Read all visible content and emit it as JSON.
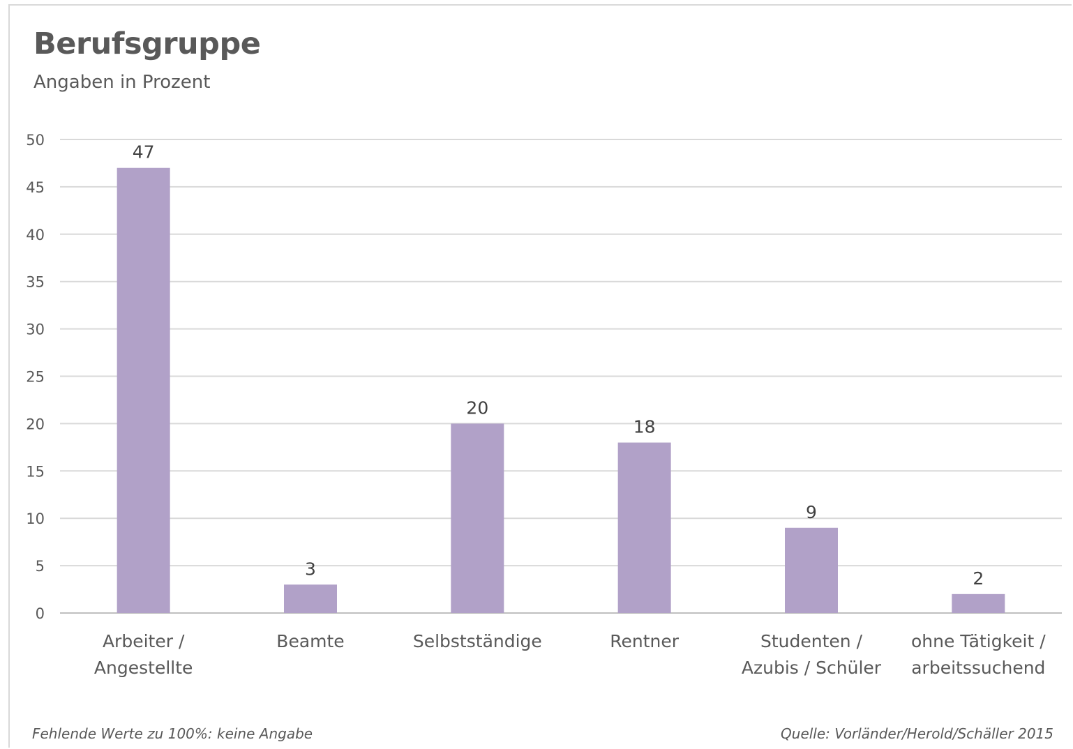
{
  "chart_data": {
    "type": "bar",
    "title": "Berufsgruppe",
    "subtitle": "Angaben in Prozent",
    "categories": [
      [
        "Arbeiter /",
        "Angestellte"
      ],
      [
        "Beamte"
      ],
      [
        "Selbstständige"
      ],
      [
        "Rentner"
      ],
      [
        "Studenten /",
        "Azubis / Schüler"
      ],
      [
        "ohne Tätigkeit /",
        "arbeitssuchend"
      ]
    ],
    "values": [
      47,
      3,
      20,
      18,
      9,
      2
    ],
    "data_labels": [
      "47",
      "3",
      "20",
      "18",
      "9",
      "2"
    ],
    "ylim": [
      0,
      50
    ],
    "yticks": [
      0,
      5,
      10,
      15,
      20,
      25,
      30,
      35,
      40,
      45,
      50
    ],
    "grid": true,
    "legend": "none",
    "bar_color": "#b1a1c8"
  },
  "footnotes": {
    "left": "Fehlende Werte zu 100%: keine Angabe",
    "right": "Quelle: Vorländer/Herold/Schäller 2015"
  }
}
